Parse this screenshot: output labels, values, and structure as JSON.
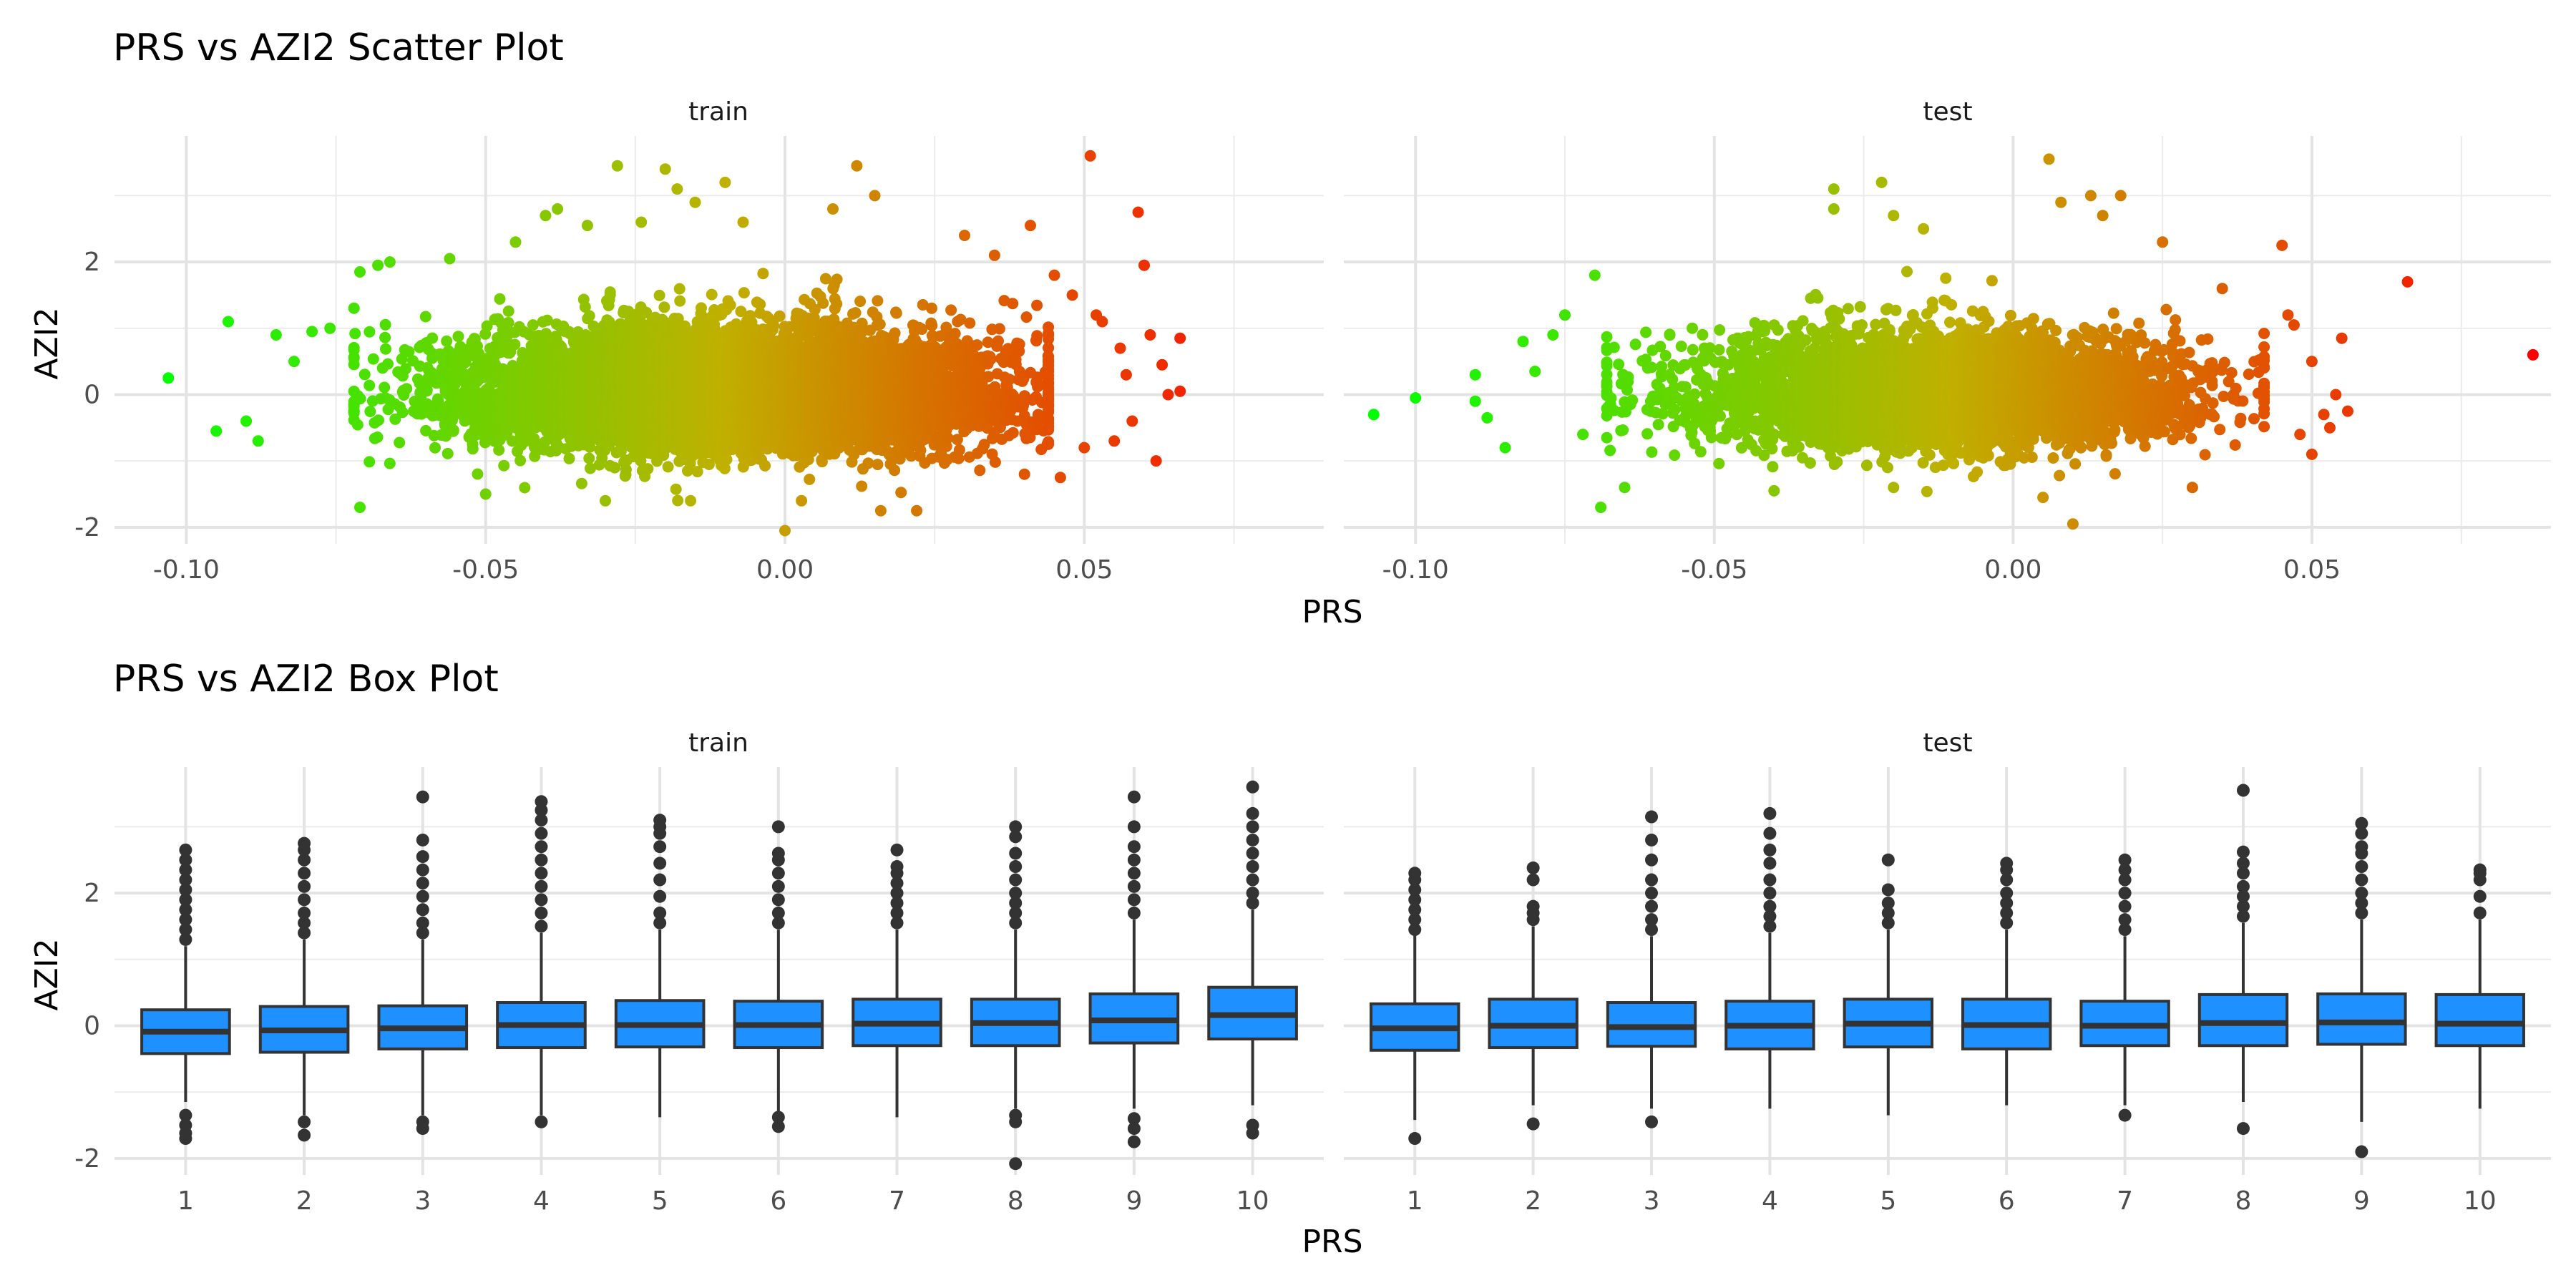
{
  "chart_data": [
    {
      "type": "scatter",
      "title": "PRS vs AZI2 Scatter Plot",
      "xlabel": "PRS",
      "ylabel": "AZI2",
      "grid": true,
      "color_scale": {
        "low": "#00ff00",
        "mid": "#c0b000",
        "high": "#ff0000",
        "mapped_to": "PRS"
      },
      "facets": [
        {
          "name": "train",
          "xlim": [
            -0.112,
            0.09
          ],
          "ylim": [
            -2.25,
            3.9
          ],
          "x_ticks": [
            -0.1,
            -0.05,
            0.0,
            0.05
          ],
          "x_tick_labels": [
            "-0.10",
            "-0.05",
            "0.00",
            "0.05"
          ],
          "y_ticks": [
            -2,
            0,
            2
          ],
          "y_tick_labels": [
            "-2",
            "0",
            "2"
          ],
          "bulk": {
            "n": 9000,
            "x_mean": -0.01,
            "x_sd": 0.021,
            "y_mean": 0.0,
            "y_sd": 0.42,
            "x_range": [
              -0.072,
              0.044
            ],
            "y_range": [
              -1.6,
              2.9
            ]
          },
          "points": [
            [
              -0.103,
              0.25
            ],
            [
              -0.093,
              1.1
            ],
            [
              -0.095,
              -0.55
            ],
            [
              -0.09,
              -0.4
            ],
            [
              -0.088,
              -0.7
            ],
            [
              -0.085,
              0.9
            ],
            [
              -0.082,
              0.5
            ],
            [
              -0.079,
              0.95
            ],
            [
              -0.076,
              1.0
            ],
            [
              -0.071,
              1.85
            ],
            [
              -0.071,
              -1.7
            ],
            [
              -0.068,
              1.95
            ],
            [
              -0.066,
              2.0
            ],
            [
              -0.056,
              2.05
            ],
            [
              -0.045,
              2.3
            ],
            [
              -0.04,
              2.7
            ],
            [
              -0.038,
              2.8
            ],
            [
              -0.033,
              2.55
            ],
            [
              -0.028,
              3.45
            ],
            [
              -0.024,
              2.6
            ],
            [
              -0.02,
              3.4
            ],
            [
              -0.018,
              3.1
            ],
            [
              -0.015,
              2.9
            ],
            [
              -0.01,
              3.2
            ],
            [
              -0.007,
              2.6
            ],
            [
              0.0,
              -2.05
            ],
            [
              0.008,
              2.8
            ],
            [
              0.012,
              3.45
            ],
            [
              0.015,
              3.0
            ],
            [
              0.016,
              -1.75
            ],
            [
              0.022,
              -1.75
            ],
            [
              0.03,
              2.4
            ],
            [
              0.035,
              2.1
            ],
            [
              0.041,
              2.55
            ],
            [
              0.045,
              1.8
            ],
            [
              0.048,
              1.5
            ],
            [
              0.051,
              3.6
            ],
            [
              0.053,
              1.1
            ],
            [
              0.056,
              0.7
            ],
            [
              0.059,
              2.75
            ],
            [
              0.06,
              1.95
            ],
            [
              0.061,
              0.9
            ],
            [
              0.062,
              -1.0
            ],
            [
              0.063,
              0.45
            ],
            [
              0.064,
              0.0
            ],
            [
              0.066,
              0.85
            ],
            [
              0.066,
              0.05
            ],
            [
              0.058,
              -0.4
            ],
            [
              0.057,
              0.3
            ],
            [
              0.055,
              -0.7
            ],
            [
              0.052,
              1.2
            ],
            [
              0.05,
              -0.8
            ],
            [
              0.046,
              -1.25
            ],
            [
              0.04,
              -1.2
            ],
            [
              -0.03,
              -1.6
            ],
            [
              -0.05,
              -1.5
            ]
          ]
        },
        {
          "name": "test",
          "xlim": [
            -0.112,
            0.09
          ],
          "ylim": [
            -2.25,
            3.9
          ],
          "x_ticks": [
            -0.1,
            -0.05,
            0.0,
            0.05
          ],
          "x_tick_labels": [
            "-0.10",
            "-0.05",
            "0.00",
            "0.05"
          ],
          "y_ticks": [
            -2,
            0,
            2
          ],
          "y_tick_labels": [
            "-2",
            "0",
            "2"
          ],
          "bulk": {
            "n": 5000,
            "x_mean": -0.012,
            "x_sd": 0.02,
            "y_mean": 0.0,
            "y_sd": 0.4,
            "x_range": [
              -0.068,
              0.042
            ],
            "y_range": [
              -1.5,
              2.7
            ]
          },
          "points": [
            [
              0.087,
              0.6
            ],
            [
              0.066,
              1.7
            ],
            [
              -0.107,
              -0.3
            ],
            [
              -0.1,
              -0.05
            ],
            [
              -0.09,
              -0.1
            ],
            [
              -0.09,
              0.3
            ],
            [
              -0.088,
              -0.35
            ],
            [
              -0.085,
              -0.8
            ],
            [
              -0.082,
              0.8
            ],
            [
              -0.08,
              0.35
            ],
            [
              -0.077,
              0.9
            ],
            [
              -0.075,
              1.2
            ],
            [
              -0.072,
              -0.6
            ],
            [
              -0.07,
              1.8
            ],
            [
              -0.069,
              -1.7
            ],
            [
              -0.065,
              -1.4
            ],
            [
              -0.03,
              2.8
            ],
            [
              -0.03,
              3.1
            ],
            [
              -0.022,
              3.2
            ],
            [
              -0.02,
              2.7
            ],
            [
              -0.015,
              2.5
            ],
            [
              0.006,
              3.55
            ],
            [
              0.008,
              2.9
            ],
            [
              0.01,
              -1.95
            ],
            [
              0.013,
              3.0
            ],
            [
              0.015,
              2.7
            ],
            [
              0.018,
              3.0
            ],
            [
              0.025,
              2.3
            ],
            [
              0.035,
              1.6
            ],
            [
              0.045,
              2.25
            ],
            [
              0.047,
              1.05
            ],
            [
              0.05,
              0.5
            ],
            [
              0.052,
              -0.3
            ],
            [
              0.053,
              -0.5
            ],
            [
              0.054,
              0.0
            ],
            [
              0.055,
              0.85
            ],
            [
              0.056,
              -0.25
            ],
            [
              0.05,
              -0.9
            ],
            [
              0.048,
              -0.6
            ],
            [
              0.046,
              1.2
            ],
            [
              0.03,
              -1.4
            ],
            [
              -0.02,
              -1.4
            ],
            [
              -0.04,
              -1.45
            ],
            [
              0.005,
              -1.55
            ]
          ]
        }
      ]
    },
    {
      "type": "boxplot",
      "title": "PRS vs AZI2 Box Plot",
      "xlabel": "PRS",
      "ylabel": "AZI2",
      "grid": true,
      "box_fill": "#1e90ff",
      "box_stroke": "#333333",
      "categories": [
        "1",
        "2",
        "3",
        "4",
        "5",
        "6",
        "7",
        "8",
        "9",
        "10"
      ],
      "facets": [
        {
          "name": "train",
          "ylim": [
            -2.25,
            3.9
          ],
          "y_ticks": [
            -2,
            0,
            2
          ],
          "y_tick_labels": [
            "-2",
            "0",
            "2"
          ],
          "boxes": [
            {
              "q1": -0.42,
              "median": -0.09,
              "q3": 0.24,
              "low": -1.15,
              "high": 1.2,
              "outliers": [
                -1.35,
                -1.5,
                -1.62,
                -1.7,
                1.3,
                1.45,
                1.6,
                1.75,
                1.9,
                2.05,
                2.2,
                2.35,
                2.5,
                2.65
              ]
            },
            {
              "q1": -0.4,
              "median": -0.07,
              "q3": 0.29,
              "low": -1.35,
              "high": 1.3,
              "outliers": [
                -1.45,
                -1.65,
                1.4,
                1.55,
                1.7,
                1.9,
                2.1,
                2.3,
                2.5,
                2.65,
                2.75
              ]
            },
            {
              "q1": -0.35,
              "median": -0.04,
              "q3": 0.3,
              "low": -1.35,
              "high": 1.3,
              "outliers": [
                -1.45,
                -1.55,
                1.4,
                1.55,
                1.75,
                1.95,
                2.15,
                2.35,
                2.55,
                2.8,
                3.45
              ]
            },
            {
              "q1": -0.33,
              "median": 0.01,
              "q3": 0.35,
              "low": -1.35,
              "high": 1.4,
              "outliers": [
                -1.45,
                1.5,
                1.7,
                1.9,
                2.1,
                2.3,
                2.5,
                2.7,
                2.9,
                3.1,
                3.25,
                3.38
              ]
            },
            {
              "q1": -0.32,
              "median": 0.01,
              "q3": 0.38,
              "low": -1.38,
              "high": 1.45,
              "outliers": [
                1.55,
                1.7,
                1.95,
                2.2,
                2.45,
                2.7,
                2.9,
                3.0,
                3.1
              ]
            },
            {
              "q1": -0.33,
              "median": 0.01,
              "q3": 0.37,
              "low": -1.3,
              "high": 1.45,
              "outliers": [
                -1.38,
                -1.52,
                1.55,
                1.7,
                1.9,
                2.1,
                2.3,
                2.5,
                2.6,
                3.0
              ]
            },
            {
              "q1": -0.3,
              "median": 0.03,
              "q3": 0.4,
              "low": -1.38,
              "high": 1.45,
              "outliers": [
                1.55,
                1.7,
                1.85,
                2.0,
                2.15,
                2.3,
                2.4,
                2.65
              ]
            },
            {
              "q1": -0.3,
              "median": 0.04,
              "q3": 0.4,
              "low": -1.25,
              "high": 1.45,
              "outliers": [
                -1.35,
                -1.45,
                -2.08,
                1.55,
                1.7,
                1.85,
                2.0,
                2.2,
                2.4,
                2.6,
                2.85,
                3.0
              ]
            },
            {
              "q1": -0.26,
              "median": 0.08,
              "q3": 0.48,
              "low": -1.25,
              "high": 1.6,
              "outliers": [
                -1.4,
                -1.55,
                -1.75,
                1.7,
                1.9,
                2.1,
                2.3,
                2.5,
                2.7,
                3.0,
                3.45
              ]
            },
            {
              "q1": -0.2,
              "median": 0.16,
              "q3": 0.58,
              "low": -1.2,
              "high": 1.75,
              "outliers": [
                -1.5,
                -1.62,
                1.85,
                2.0,
                2.2,
                2.4,
                2.6,
                2.8,
                3.0,
                3.2,
                3.6
              ]
            }
          ]
        },
        {
          "name": "test",
          "ylim": [
            -2.25,
            3.9
          ],
          "y_ticks": [
            -2,
            0,
            2
          ],
          "y_tick_labels": [
            "-2",
            "0",
            "2"
          ],
          "boxes": [
            {
              "q1": -0.37,
              "median": -0.04,
              "q3": 0.33,
              "low": -1.42,
              "high": 1.38,
              "outliers": [
                -1.7,
                1.45,
                1.6,
                1.75,
                1.9,
                2.05,
                2.2,
                2.3
              ]
            },
            {
              "q1": -0.33,
              "median": 0.0,
              "q3": 0.4,
              "low": -1.2,
              "high": 1.5,
              "outliers": [
                -1.48,
                1.6,
                1.7,
                1.8,
                2.2,
                2.38
              ]
            },
            {
              "q1": -0.31,
              "median": -0.02,
              "q3": 0.35,
              "low": -1.25,
              "high": 1.35,
              "outliers": [
                -1.45,
                1.45,
                1.6,
                1.8,
                2.0,
                2.2,
                2.5,
                2.8,
                3.15
              ]
            },
            {
              "q1": -0.35,
              "median": 0.0,
              "q3": 0.37,
              "low": -1.25,
              "high": 1.4,
              "outliers": [
                1.5,
                1.65,
                1.8,
                2.0,
                2.2,
                2.45,
                2.65,
                2.9,
                3.2
              ]
            },
            {
              "q1": -0.32,
              "median": 0.03,
              "q3": 0.4,
              "low": -1.35,
              "high": 1.45,
              "outliers": [
                1.55,
                1.7,
                1.85,
                2.05,
                2.5
              ]
            },
            {
              "q1": -0.35,
              "median": 0.01,
              "q3": 0.4,
              "low": -1.2,
              "high": 1.45,
              "outliers": [
                1.55,
                1.7,
                1.85,
                2.0,
                2.2,
                2.35,
                2.45
              ]
            },
            {
              "q1": -0.3,
              "median": 0.0,
              "q3": 0.37,
              "low": -1.2,
              "high": 1.35,
              "outliers": [
                -1.35,
                1.45,
                1.6,
                1.8,
                2.0,
                2.2,
                2.35,
                2.5
              ]
            },
            {
              "q1": -0.3,
              "median": 0.04,
              "q3": 0.47,
              "low": -1.15,
              "high": 1.55,
              "outliers": [
                -1.55,
                1.65,
                1.8,
                1.95,
                2.1,
                2.3,
                2.45,
                2.62,
                3.55
              ]
            },
            {
              "q1": -0.28,
              "median": 0.05,
              "q3": 0.48,
              "low": -1.45,
              "high": 1.6,
              "outliers": [
                -1.9,
                1.7,
                1.85,
                2.0,
                2.2,
                2.4,
                2.6,
                2.7,
                2.9,
                3.05
              ]
            },
            {
              "q1": -0.3,
              "median": 0.03,
              "q3": 0.47,
              "low": -1.25,
              "high": 1.6,
              "outliers": [
                1.7,
                1.95,
                2.2,
                2.3,
                2.35
              ]
            }
          ]
        }
      ]
    }
  ]
}
